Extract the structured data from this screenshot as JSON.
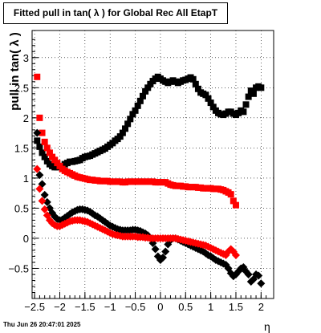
{
  "chart_data": {
    "type": "scatter",
    "title": "Fitted pull in tan( λ ) for Global Rec All EtapT",
    "xlabel": "η",
    "ylabel": "pull in tan( λ )",
    "xlim": [
      -2.55,
      2.25
    ],
    "ylim": [
      -1.0,
      3.45
    ],
    "xticks": [
      -2.5,
      -2,
      -1.5,
      -1,
      -0.5,
      0,
      0.5,
      1,
      1.5,
      2
    ],
    "xtick_labels": [
      "−2.5",
      "−2",
      "−1.5",
      "−1",
      "−0.5",
      "0",
      "0.5",
      "1",
      "1.5",
      "2"
    ],
    "yticks": [
      -0.5,
      0,
      0.5,
      1,
      1.5,
      2,
      2.5,
      3
    ],
    "ytick_labels": [
      "−0.5",
      "0",
      "0.5",
      "1",
      "1.5",
      "2",
      "2.5",
      "3"
    ],
    "grid": true,
    "series": [
      {
        "color": "#000000",
        "marker": "square",
        "x": [
          -2.45,
          -2.4,
          -2.35,
          -2.3,
          -2.25,
          -2.2,
          -2.15,
          -2.1,
          -2.05,
          -2.0,
          -1.95,
          -1.9,
          -1.85,
          -1.8,
          -1.75,
          -1.7,
          -1.65,
          -1.6,
          -1.55,
          -1.5,
          -1.45,
          -1.4,
          -1.35,
          -1.3,
          -1.25,
          -1.2,
          -1.15,
          -1.1,
          -1.05,
          -1.0,
          -0.95,
          -0.9,
          -0.85,
          -0.8,
          -0.75,
          -0.7,
          -0.65,
          -0.6,
          -0.55,
          -0.5,
          -0.45,
          -0.4,
          -0.35,
          -0.3,
          -0.25,
          -0.2,
          -0.15,
          -0.1,
          -0.05,
          0.0,
          0.05,
          0.1,
          0.15,
          0.2,
          0.25,
          0.3,
          0.35,
          0.4,
          0.45,
          0.5,
          0.55,
          0.6,
          0.65,
          0.7,
          0.75,
          0.8,
          0.85,
          0.9,
          0.95,
          1.0,
          1.05,
          1.1,
          1.15,
          1.2,
          1.25,
          1.3,
          1.35,
          1.4,
          1.45,
          1.5,
          1.55,
          1.6,
          1.65,
          1.7,
          1.75,
          1.8,
          1.85,
          1.9,
          1.95,
          2.0
        ],
        "y": [
          1.62,
          1.52,
          1.42,
          1.35,
          1.28,
          1.23,
          1.2,
          1.18,
          1.18,
          1.19,
          1.2,
          1.23,
          1.25,
          1.27,
          1.27,
          1.28,
          1.29,
          1.3,
          1.33,
          1.35,
          1.36,
          1.37,
          1.39,
          1.41,
          1.43,
          1.45,
          1.47,
          1.49,
          1.52,
          1.55,
          1.58,
          1.62,
          1.65,
          1.69,
          1.75,
          1.82,
          1.9,
          1.98,
          2.06,
          2.12,
          2.2,
          2.28,
          2.36,
          2.44,
          2.5,
          2.56,
          2.61,
          2.65,
          2.68,
          2.65,
          2.62,
          2.6,
          2.58,
          2.6,
          2.62,
          2.6,
          2.58,
          2.6,
          2.62,
          2.63,
          2.65,
          2.67,
          2.64,
          2.56,
          2.48,
          2.42,
          2.4,
          2.38,
          2.32,
          2.25,
          2.18,
          2.12,
          2.08,
          2.06,
          2.05,
          2.07,
          2.1,
          2.1,
          2.07,
          2.05,
          2.08,
          2.12,
          2.1,
          2.22,
          2.35,
          2.45,
          2.4,
          2.5,
          2.52,
          2.5
        ]
      },
      {
        "color": "#ff0000",
        "marker": "square",
        "x": [
          -2.45,
          -2.4,
          -2.35,
          -2.3,
          -2.25,
          -2.2,
          -2.15,
          -2.1,
          -2.05,
          -2.0,
          -1.95,
          -1.9,
          -1.85,
          -1.8,
          -1.75,
          -1.7,
          -1.65,
          -1.6,
          -1.55,
          -1.5,
          -1.45,
          -1.4,
          -1.35,
          -1.3,
          -1.25,
          -1.2,
          -1.15,
          -1.1,
          -1.05,
          -1.0,
          -0.95,
          -0.9,
          -0.85,
          -0.8,
          -0.75,
          -0.7,
          -0.65,
          -0.6,
          -0.55,
          -0.5,
          -0.45,
          -0.4,
          -0.35,
          -0.3,
          -0.25,
          -0.2,
          -0.15,
          -0.1,
          -0.05,
          0.0,
          0.05,
          0.1,
          0.15,
          0.2,
          0.25,
          0.3,
          0.35,
          0.4,
          0.45,
          0.5,
          0.55,
          0.6,
          0.65,
          0.7,
          0.75,
          0.8,
          0.85,
          0.9,
          0.95,
          1.0,
          1.05,
          1.1,
          1.15,
          1.2,
          1.25,
          1.3,
          1.35,
          1.4,
          1.45,
          1.5
        ],
        "y": [
          2.68,
          2.0,
          1.75,
          1.6,
          1.5,
          1.42,
          1.35,
          1.3,
          1.25,
          1.2,
          1.15,
          1.12,
          1.1,
          1.08,
          1.06,
          1.04,
          1.02,
          1.01,
          1.0,
          0.99,
          0.98,
          0.97,
          0.97,
          0.96,
          0.96,
          0.95,
          0.95,
          0.95,
          0.95,
          0.94,
          0.94,
          0.94,
          0.94,
          0.94,
          0.93,
          0.93,
          0.94,
          0.94,
          0.94,
          0.94,
          0.94,
          0.94,
          0.94,
          0.94,
          0.94,
          0.94,
          0.94,
          0.93,
          0.93,
          0.93,
          0.93,
          0.93,
          0.91,
          0.89,
          0.88,
          0.87,
          0.87,
          0.87,
          0.86,
          0.86,
          0.85,
          0.85,
          0.85,
          0.85,
          0.84,
          0.84,
          0.83,
          0.83,
          0.83,
          0.83,
          0.82,
          0.82,
          0.82,
          0.81,
          0.8,
          0.78,
          0.76,
          0.73,
          0.62,
          0.55
        ]
      },
      {
        "color": "#000000",
        "marker": "diamond",
        "x": [
          -2.45,
          -2.4,
          -2.35,
          -2.3,
          -2.25,
          -2.2,
          -2.15,
          -2.1,
          -2.05,
          -2.0,
          -1.95,
          -1.9,
          -1.85,
          -1.8,
          -1.75,
          -1.7,
          -1.65,
          -1.6,
          -1.55,
          -1.5,
          -1.45,
          -1.4,
          -1.35,
          -1.3,
          -1.25,
          -1.2,
          -1.15,
          -1.1,
          -1.05,
          -1.0,
          -0.95,
          -0.9,
          -0.85,
          -0.8,
          -0.75,
          -0.7,
          -0.65,
          -0.6,
          -0.55,
          -0.5,
          -0.45,
          -0.4,
          -0.35,
          -0.3,
          -0.25,
          -0.2,
          -0.15,
          -0.1,
          -0.05,
          0.0,
          0.05,
          0.1,
          0.15,
          0.2,
          0.25,
          0.3,
          0.35,
          0.4,
          0.45,
          0.5,
          0.55,
          0.6,
          0.65,
          0.7,
          0.75,
          0.8,
          0.85,
          0.9,
          0.95,
          1.0,
          1.05,
          1.1,
          1.15,
          1.2,
          1.25,
          1.3,
          1.35,
          1.4,
          1.45,
          1.5,
          1.55,
          1.6,
          1.65,
          1.7,
          1.75,
          1.8,
          1.85,
          1.9,
          1.95,
          2.0
        ],
        "y": [
          1.75,
          1.05,
          0.9,
          0.72,
          0.6,
          0.5,
          0.42,
          0.36,
          0.32,
          0.3,
          0.31,
          0.34,
          0.37,
          0.4,
          0.43,
          0.45,
          0.47,
          0.48,
          0.48,
          0.47,
          0.46,
          0.44,
          0.41,
          0.38,
          0.36,
          0.33,
          0.3,
          0.27,
          0.24,
          0.21,
          0.19,
          0.17,
          0.15,
          0.14,
          0.13,
          0.13,
          0.13,
          0.13,
          0.14,
          0.14,
          0.13,
          0.12,
          0.1,
          0.08,
          0.05,
          0.0,
          -0.08,
          -0.18,
          -0.3,
          -0.36,
          -0.32,
          -0.22,
          -0.1,
          -0.03,
          0.0,
          0.0,
          -0.02,
          -0.04,
          -0.06,
          -0.08,
          -0.1,
          -0.12,
          -0.14,
          -0.16,
          -0.18,
          -0.2,
          -0.22,
          -0.25,
          -0.28,
          -0.3,
          -0.33,
          -0.36,
          -0.38,
          -0.4,
          -0.42,
          -0.44,
          -0.5,
          -0.58,
          -0.63,
          -0.6,
          -0.55,
          -0.5,
          -0.48,
          -0.55,
          -0.6,
          -0.72,
          -0.68,
          -0.6,
          -0.62,
          -0.75
        ]
      },
      {
        "color": "#ff0000",
        "marker": "diamond",
        "x": [
          -2.45,
          -2.4,
          -2.35,
          -2.3,
          -2.25,
          -2.2,
          -2.15,
          -2.1,
          -2.05,
          -2.0,
          -1.95,
          -1.9,
          -1.85,
          -1.8,
          -1.75,
          -1.7,
          -1.65,
          -1.6,
          -1.55,
          -1.5,
          -1.45,
          -1.4,
          -1.35,
          -1.3,
          -1.25,
          -1.2,
          -1.15,
          -1.1,
          -1.05,
          -1.0,
          -0.95,
          -0.9,
          -0.85,
          -0.8,
          -0.75,
          -0.7,
          -0.65,
          -0.6,
          -0.55,
          -0.5,
          -0.45,
          -0.4,
          -0.35,
          -0.3,
          -0.25,
          -0.2,
          -0.15,
          -0.1,
          -0.05,
          0.0,
          0.05,
          0.1,
          0.15,
          0.2,
          0.25,
          0.3,
          0.35,
          0.4,
          0.45,
          0.5,
          0.55,
          0.6,
          0.65,
          0.7,
          0.75,
          0.8,
          0.85,
          0.9,
          0.95,
          1.0,
          1.05,
          1.1,
          1.15,
          1.2,
          1.25,
          1.3,
          1.35,
          1.4,
          1.45,
          1.5
        ],
        "y": [
          1.15,
          0.82,
          0.62,
          0.48,
          0.38,
          0.3,
          0.25,
          0.22,
          0.2,
          0.2,
          0.22,
          0.24,
          0.26,
          0.28,
          0.29,
          0.3,
          0.3,
          0.3,
          0.29,
          0.28,
          0.27,
          0.25,
          0.23,
          0.21,
          0.19,
          0.17,
          0.15,
          0.13,
          0.11,
          0.09,
          0.07,
          0.06,
          0.05,
          0.04,
          0.03,
          0.03,
          0.03,
          0.03,
          0.03,
          0.03,
          0.02,
          0.02,
          0.02,
          0.01,
          0.01,
          0.0,
          0.0,
          0.0,
          0.0,
          0.0,
          0.0,
          0.0,
          0.0,
          0.0,
          0.0,
          0.0,
          -0.01,
          -0.02,
          -0.03,
          -0.04,
          -0.05,
          -0.06,
          -0.07,
          -0.08,
          -0.09,
          -0.1,
          -0.11,
          -0.12,
          -0.14,
          -0.16,
          -0.18,
          -0.2,
          -0.22,
          -0.24,
          -0.26,
          -0.28,
          -0.22,
          -0.18,
          -0.22,
          -0.28
        ]
      }
    ]
  },
  "timestamp": "Thu Jun 26 20:47:01 2025"
}
